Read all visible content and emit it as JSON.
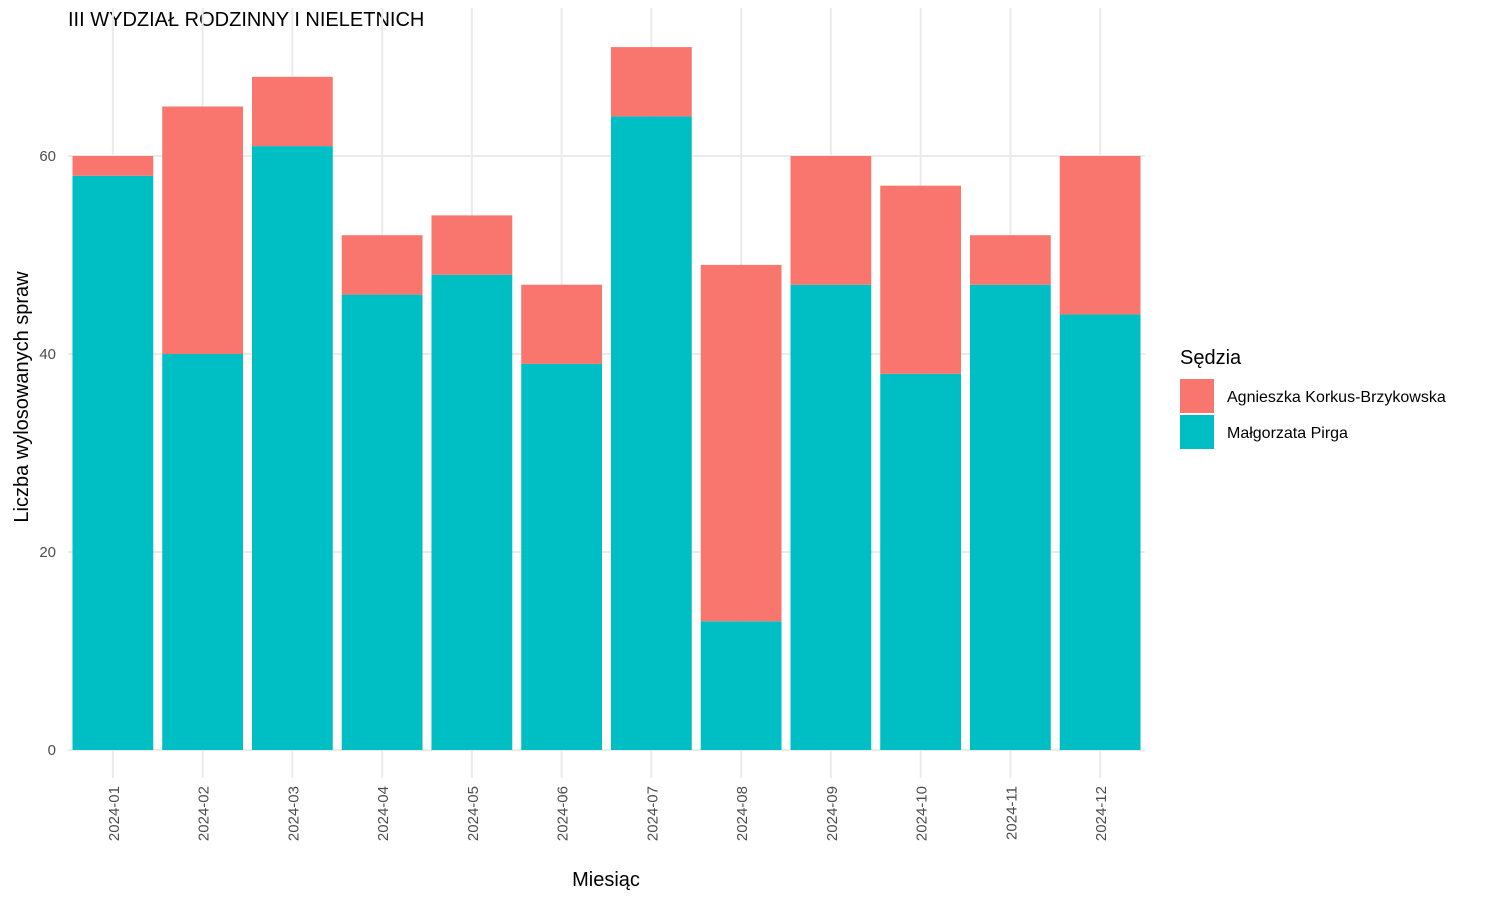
{
  "chart_data": {
    "type": "bar",
    "stacked": true,
    "title": "III WYDZIAŁ RODZINNY I NIELETNICH",
    "xlabel": "Miesiąc",
    "ylabel": "Liczba wylosowanych spraw",
    "categories": [
      "2024-01",
      "2024-02",
      "2024-03",
      "2024-04",
      "2024-05",
      "2024-06",
      "2024-07",
      "2024-08",
      "2024-09",
      "2024-10",
      "2024-11",
      "2024-12"
    ],
    "series": [
      {
        "name": "Małgorzata Pirga",
        "color": "#00bfc4",
        "values": [
          58,
          40,
          61,
          46,
          48,
          39,
          64,
          13,
          47,
          38,
          47,
          44
        ]
      },
      {
        "name": "Agnieszka Korkus-Brzykowska",
        "color": "#f8766d",
        "values": [
          2,
          25,
          7,
          6,
          6,
          8,
          7,
          36,
          13,
          19,
          5,
          16
        ]
      }
    ],
    "ylim": [
      0,
      71
    ],
    "yticks": [
      0,
      20,
      40,
      60
    ],
    "grid": true,
    "legend": {
      "title": "Sędzia",
      "placement": "right",
      "entries": [
        {
          "label": "Agnieszka Korkus-Brzykowska",
          "color": "#f8766d"
        },
        {
          "label": "Małgorzata Pirga",
          "color": "#00bfc4"
        }
      ]
    }
  }
}
